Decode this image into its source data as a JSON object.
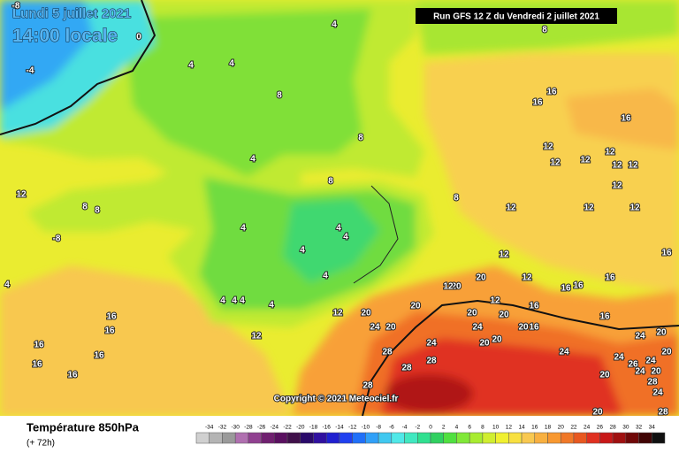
{
  "header": {
    "date": "Lundi 5 juillet 2021",
    "time": "14:00 locale",
    "run": "Run GFS 12 Z du Vendredi 2 juillet 2021"
  },
  "copyright": "Copyright © 2021 Meteociel.fr",
  "legend": {
    "title": "Température 850hPa",
    "lead": "(+ 72h)",
    "ticks": [
      -34,
      -32,
      -30,
      -28,
      -26,
      -24,
      -22,
      -20,
      -18,
      -16,
      -14,
      -12,
      -10,
      -8,
      -6,
      -4,
      -2,
      0,
      2,
      4,
      6,
      8,
      10,
      12,
      14,
      16,
      18,
      20,
      22,
      24,
      26,
      28,
      30,
      32,
      34
    ],
    "colors": [
      "#d0d0d0",
      "#b4b4b4",
      "#9a9a9a",
      "#b070b0",
      "#904090",
      "#702070",
      "#5a1060",
      "#40104a",
      "#2a0a6a",
      "#3010a0",
      "#2020d0",
      "#2040f0",
      "#2070f8",
      "#30a0f8",
      "#40c8f0",
      "#50e8e8",
      "#40e8c0",
      "#30e090",
      "#30d060",
      "#50e040",
      "#80e838",
      "#a8ec30",
      "#d0ee30",
      "#f0f030",
      "#f8e040",
      "#f8c850",
      "#f8b040",
      "#f89830",
      "#f07828",
      "#e85820",
      "#e03020",
      "#c81818",
      "#a01010",
      "#700808",
      "#400404",
      "#101010"
    ]
  },
  "contour_labels": [
    -8,
    0,
    -4,
    -8,
    4,
    4,
    4,
    8,
    8,
    8,
    4,
    8,
    8,
    12,
    8,
    8,
    4,
    4,
    4,
    4,
    4,
    4,
    4,
    4,
    4,
    4,
    16,
    16,
    16,
    12,
    12,
    12,
    12,
    12,
    12,
    12,
    12,
    12,
    12,
    12,
    20,
    12,
    20,
    12,
    16,
    16,
    16,
    16,
    12,
    16,
    12,
    20,
    20,
    20,
    20,
    20,
    16,
    20,
    16,
    24,
    24,
    12,
    16,
    16,
    16,
    16,
    16,
    16,
    28,
    24,
    20,
    20,
    24,
    24,
    20,
    24,
    26,
    24,
    20,
    28,
    28,
    20,
    24,
    20,
    28,
    28,
    24,
    20,
    28
  ]
}
